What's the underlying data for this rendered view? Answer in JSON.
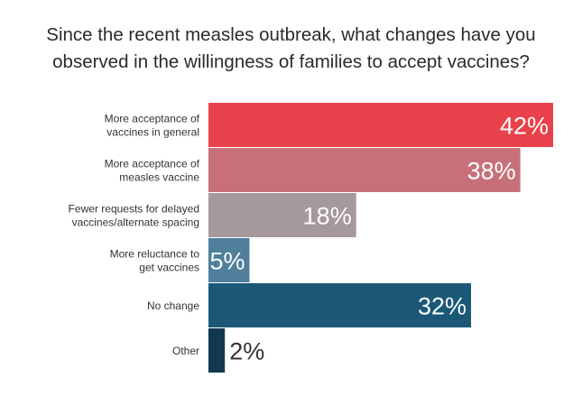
{
  "title_lines": [
    "Since the recent measles outbreak, what changes have you",
    "observed in the willingness of families to accept vaccines?"
  ],
  "chart_data": {
    "type": "bar",
    "orientation": "horizontal",
    "title": "Since the recent measles outbreak, what changes have you observed in the willingness of families to accept vaccines?",
    "categories": [
      [
        "More acceptance of",
        "vaccines in general"
      ],
      [
        "More acceptance of",
        "measles vaccine"
      ],
      [
        "Fewer requests for delayed",
        "vaccines/alternate spacing"
      ],
      [
        "More reluctance to",
        "get vaccines"
      ],
      [
        "No change"
      ],
      [
        "Other"
      ]
    ],
    "values": [
      42,
      38,
      18,
      5,
      32,
      2
    ],
    "value_labels": [
      "42%",
      "38%",
      "18%",
      "5%",
      "32%",
      "2%"
    ],
    "colors": [
      "#e8414b",
      "#c8707a",
      "#a6999c",
      "#4f7f9b",
      "#1b5878",
      "#12384f"
    ],
    "xlim": [
      0,
      42
    ],
    "grid": false,
    "legend": "none"
  }
}
